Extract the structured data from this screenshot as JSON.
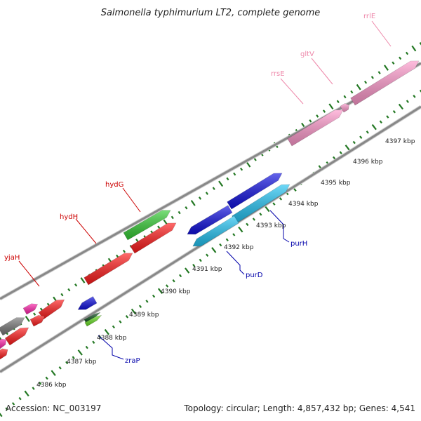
{
  "title": "Salmonella typhimurium LT2, complete genome",
  "footer": {
    "accession": "Accession: NC_003197",
    "summary": "Topology: circular; Length: 4,857,432 bp; Genes: 4,541"
  },
  "kbp_labels": [
    "4386 kbp",
    "4387 kbp",
    "4388 kbp",
    "4389 kbp",
    "4390 kbp",
    "4391 kbp",
    "4392 kbp",
    "4393 kbp",
    "4394 kbp",
    "4395 kbp",
    "4396 kbp",
    "4397 kbp"
  ],
  "gene_labels": {
    "hydG": "hydG",
    "hydH": "hydH",
    "yjaH": "yjaH",
    "rrsE": "rrsE",
    "gltV": "gltV",
    "rrlE": "rrlE",
    "purH": "purH",
    "purD": "purD",
    "zraP": "zraP"
  },
  "colors": {
    "red": "#ff1a1a",
    "green": "#33cc33",
    "blue": "#1010e0",
    "cyan": "#22c4f4",
    "pink": "#ff99cc",
    "magenta": "#ff22aa",
    "gray": "#777777",
    "tick": "#227722",
    "backbone": "#888888",
    "label_red": "#cc0000",
    "label_blue": "#0000aa",
    "label_pink": "#ee88aa"
  }
}
